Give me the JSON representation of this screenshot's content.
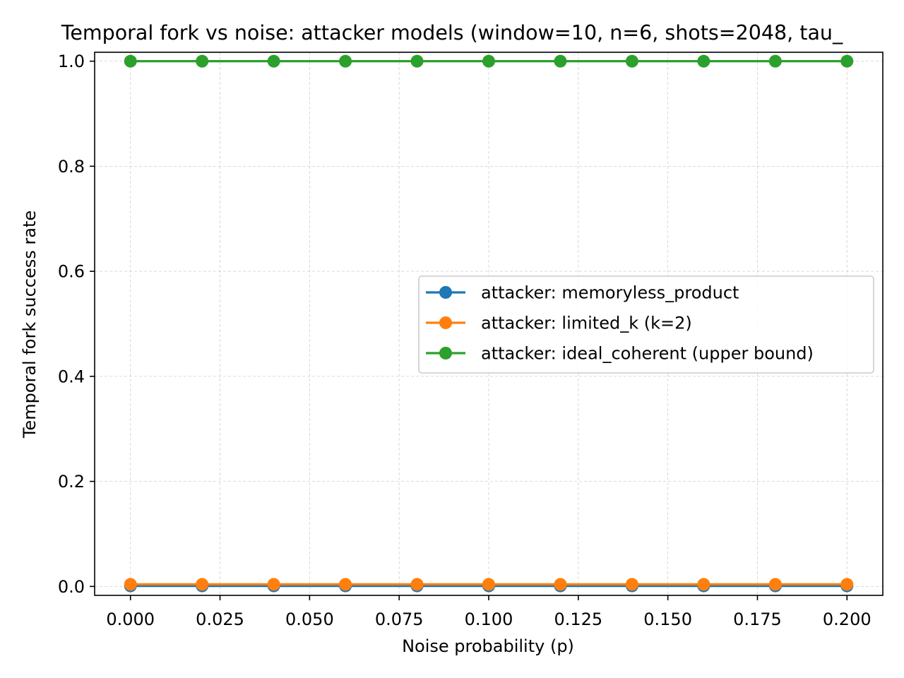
{
  "chart_data": {
    "type": "line",
    "title": "Temporal fork vs noise: attacker models (window=10, n=6, shots=2048, tau_",
    "xlabel": "Noise probability (p)",
    "ylabel": "Temporal fork success rate",
    "xlim": [
      -0.01,
      0.21
    ],
    "ylim": [
      -0.017,
      1.017
    ],
    "xticks": [
      0.0,
      0.025,
      0.05,
      0.075,
      0.1,
      0.125,
      0.15,
      0.175,
      0.2
    ],
    "xtick_labels": [
      "0.000",
      "0.025",
      "0.050",
      "0.075",
      "0.100",
      "0.125",
      "0.150",
      "0.175",
      "0.200"
    ],
    "yticks": [
      0.0,
      0.2,
      0.4,
      0.6,
      0.8,
      1.0
    ],
    "ytick_labels": [
      "0.0",
      "0.2",
      "0.4",
      "0.6",
      "0.8",
      "1.0"
    ],
    "grid": true,
    "legend_position": "center-right",
    "x": [
      0.0,
      0.02,
      0.04,
      0.06,
      0.08,
      0.1,
      0.12,
      0.14,
      0.16,
      0.18,
      0.2
    ],
    "series": [
      {
        "name": "attacker: memoryless_product",
        "color": "#1f77b4",
        "values": [
          0.001,
          0.001,
          0.001,
          0.001,
          0.001,
          0.001,
          0.001,
          0.001,
          0.001,
          0.001,
          0.001
        ]
      },
      {
        "name": "attacker: limited_k (k=2)",
        "color": "#ff7f0e",
        "values": [
          0.004,
          0.004,
          0.004,
          0.004,
          0.004,
          0.004,
          0.004,
          0.004,
          0.004,
          0.004,
          0.004
        ]
      },
      {
        "name": "attacker: ideal_coherent (upper bound)",
        "color": "#2ca02c",
        "values": [
          1.0,
          1.0,
          1.0,
          1.0,
          1.0,
          1.0,
          1.0,
          1.0,
          1.0,
          1.0,
          1.0
        ]
      }
    ]
  }
}
